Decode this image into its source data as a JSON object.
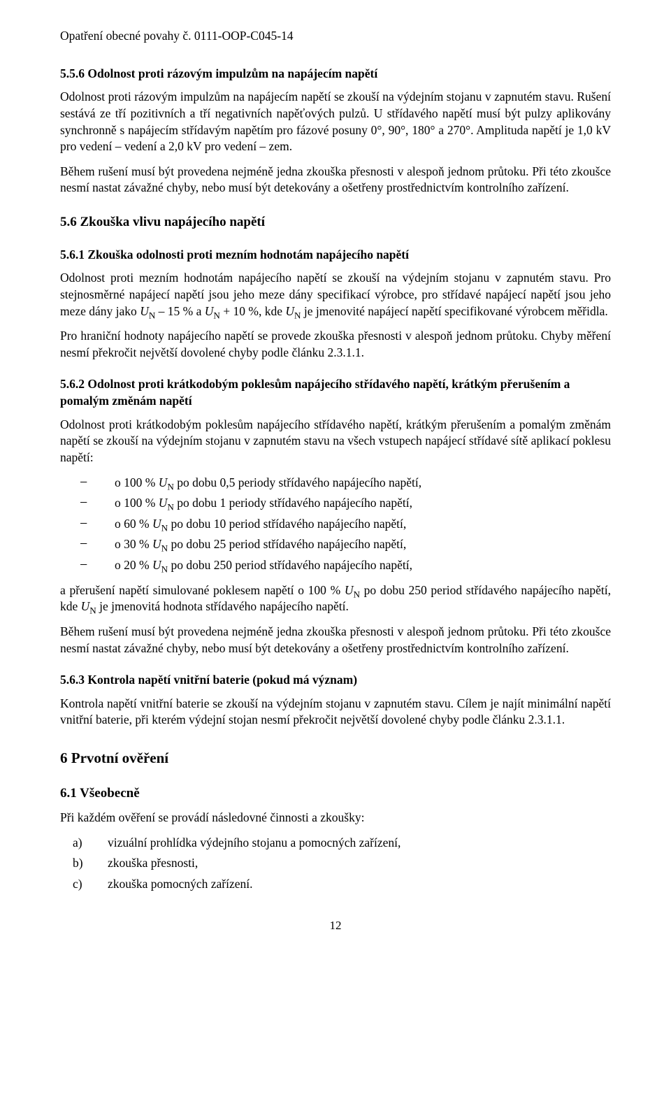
{
  "header": "Opatření obecné povahy č. 0111-OOP-C045-14",
  "s556": {
    "title": "5.5.6  Odolnost proti rázovým impulzům na napájecím napětí",
    "p1": "Odolnost proti rázovým impulzům na napájecím napětí se zkouší na výdejním stojanu v zapnutém stavu. Rušení sestává ze tří pozitivních a tří negativních napěťových pulzů. U střídavého napětí musí být pulzy aplikovány synchronně s napájecím střídavým napětím pro fázové posuny 0°, 90°, 180° a 270°. Amplituda napětí je 1,0 kV pro vedení – vedení a 2,0 kV pro vedení – zem.",
    "p2": "Během rušení musí být provedena nejméně jedna zkouška přesnosti v alespoň jednom průtoku. Při této zkoušce nesmí nastat závažné chyby, nebo musí být detekovány a ošetřeny prostřednictvím kontrolního zařízení."
  },
  "s56": {
    "title": "5.6  Zkouška vlivu napájecího napětí"
  },
  "s561": {
    "title": "5.6.1  Zkouška odolnosti proti mezním hodnotám napájecího napětí",
    "p1_a": "Odolnost proti mezním hodnotám napájecího napětí se zkouší na výdejním stojanu v zapnutém stavu. Pro stejnosměrné napájecí napětí jsou jeho meze dány specifikací výrobce, pro střídavé napájecí napětí jsou jeho meze dány jako ",
    "p1_b": " – 15 % a ",
    "p1_c": " + 10 %, kde ",
    "p1_d": " je jmenovité napájecí napětí specifikované výrobcem měřidla.",
    "p2": "Pro hraniční hodnoty napájecího napětí se provede zkouška přesnosti v alespoň jednom průtoku. Chyby měření nesmí překročit největší dovolené chyby podle článku 2.3.1.1."
  },
  "s562": {
    "title": "5.6.2  Odolnost proti krátkodobým poklesům napájecího střídavého napětí, krátkým přerušením a pomalým změnám napětí",
    "p1": "Odolnost proti krátkodobým poklesům napájecího střídavého napětí, krátkým přerušením a pomalým změnám napětí se zkouší na výdejním stojanu v zapnutém stavu na všech vstupech napájecí střídavé sítě aplikací poklesu napětí:",
    "items": {
      "i0_a": "o 100 % ",
      "i0_b": " po dobu 0,5 periody střídavého napájecího napětí,",
      "i1_a": "o 100 % ",
      "i1_b": " po dobu 1 periody střídavého napájecího napětí,",
      "i2_a": "o 60 % ",
      "i2_b": " po dobu 10 period střídavého napájecího napětí,",
      "i3_a": "o 30 % ",
      "i3_b": " po dobu 25 period střídavého napájecího napětí,",
      "i4_a": "o 20 % ",
      "i4_b": " po dobu 250 period střídavého napájecího napětí,"
    },
    "p2_a": "a přerušení napětí simulované poklesem napětí o 100 % ",
    "p2_b": " po dobu 250 period střídavého napájecího napětí, kde ",
    "p2_c": " je jmenovitá hodnota střídavého napájecího napětí.",
    "p3": "Během rušení musí být provedena nejméně jedna zkouška přesnosti v alespoň jednom průtoku. Při této zkoušce nesmí nastat závažné chyby, nebo musí být detekovány a ošetřeny prostřednictvím kontrolního zařízení."
  },
  "s563": {
    "title": "5.6.3  Kontrola napětí vnitřní baterie (pokud má význam)",
    "p1": "Kontrola napětí vnitřní baterie se zkouší na výdejním stojanu v zapnutém stavu. Cílem je najít minimální napětí vnitřní baterie, při kterém výdejní stojan nesmí překročit největší dovolené chyby podle článku 2.3.1.1."
  },
  "s6": {
    "title": "6  Prvotní ověření"
  },
  "s61": {
    "title": "6.1  Všeobecně",
    "p1": "Při každém ověření se provádí následovné činnosti a zkoušky:",
    "a": "vizuální prohlídka výdejního stojanu a pomocných zařízení,",
    "b": "zkouška přesnosti,",
    "c": "zkouška pomocných zařízení.",
    "la": "a)",
    "lb": "b)",
    "lc": "c)"
  },
  "un": {
    "u": "U",
    "n": "N"
  },
  "dash": "−",
  "pagenum": "12"
}
